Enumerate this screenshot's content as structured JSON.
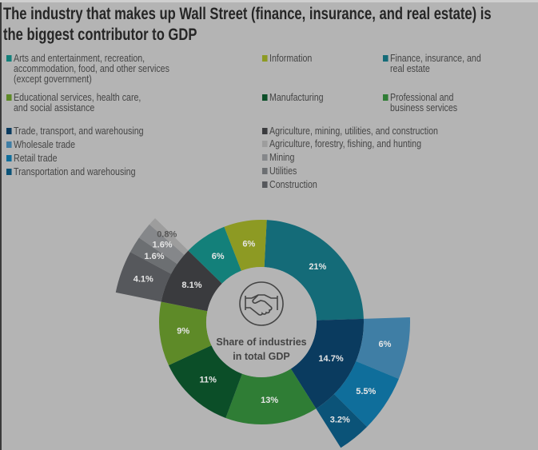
{
  "chart_data": {
    "type": "sunburst",
    "title": "The industry that makes up Wall Street (finance, insurance, and real estate) is the biggest contributor to GDP",
    "center_label": [
      "Share of industries",
      "in total GDP"
    ],
    "center_icon": "handshake-icon",
    "unit": "%",
    "segments": [
      {
        "name": "Finance, insurance, and real estate",
        "value": 21,
        "label": "21%",
        "color": "#146b78"
      },
      {
        "name": "Trade, transport, and warehousing",
        "value": 14.7,
        "label": "14.7%",
        "color": "#0a3b5f",
        "children": [
          {
            "name": "Wholesale trade",
            "value": 6,
            "label": "6%",
            "color": "#3f7ea5"
          },
          {
            "name": "Retail trade",
            "value": 5.5,
            "label": "5.5%",
            "color": "#0f6e9b"
          },
          {
            "name": "Transportation and warehousing",
            "value": 3.2,
            "label": "3.2%",
            "color": "#0b5378"
          }
        ]
      },
      {
        "name": "Professional and business services",
        "value": 13,
        "label": "13%",
        "color": "#2f7d35"
      },
      {
        "name": "Manufacturing",
        "value": 11,
        "label": "11%",
        "color": "#0b4e28"
      },
      {
        "name": "Educational services, health care, and social assistance",
        "value": 9,
        "label": "9%",
        "color": "#5e8a28"
      },
      {
        "name": "Agriculture, mining, utilities, and construction",
        "value": 8.1,
        "label": "8.1%",
        "color": "#3a3b3e",
        "children": [
          {
            "name": "Construction",
            "value": 4.1,
            "label": "4.1%",
            "color": "#56585c"
          },
          {
            "name": "Utilities",
            "value": 1.6,
            "label": "1.6%",
            "color": "#6c6f72"
          },
          {
            "name": "Mining",
            "value": 1.6,
            "label": "1.6%",
            "color": "#85878a"
          },
          {
            "name": "Agriculture, forestry, fishing, and hunting",
            "value": 0.8,
            "label": "0.8%",
            "color": "#9d9d9d"
          }
        ]
      },
      {
        "name": "Arts and entertainment, recreation, accommodation, food, and other services (except government)",
        "value": 6,
        "label": "6%",
        "color": "#13807a"
      },
      {
        "name": "Information",
        "value": 6,
        "label": "6%",
        "color": "#8d9a23"
      }
    ]
  },
  "legend": [
    {
      "lines": [
        "Arts and entertainment, recreation,",
        "accommodation, food, and other services",
        "(except government)"
      ],
      "color": "#13807a"
    },
    {
      "lines": [
        "Information"
      ],
      "color": "#8d9a23"
    },
    {
      "lines": [
        "Finance, insurance, and",
        "real estate"
      ],
      "color": "#146b78"
    },
    {
      "lines": [
        "Educational services, health care,",
        "and social assistance"
      ],
      "color": "#5e8a28"
    },
    {
      "lines": [
        "Manufacturing"
      ],
      "color": "#0b4e28"
    },
    {
      "lines": [
        "Professional and",
        "business services"
      ],
      "color": "#2f7d35"
    },
    {
      "lines": [
        "Trade, transport, and warehousing"
      ],
      "color": "#0a3b5f"
    },
    {
      "lines": [
        "Wholesale trade"
      ],
      "color": "#3f7ea5"
    },
    {
      "lines": [
        "Retail trade"
      ],
      "color": "#0f6e9b"
    },
    {
      "lines": [
        "Transportation and warehousing"
      ],
      "color": "#0b5378"
    },
    {
      "lines": [
        "Agriculture, mining, utilities, and construction"
      ],
      "color": "#3a3b3e"
    },
    {
      "lines": [
        "Agriculture, forestry, fishing, and hunting"
      ],
      "color": "#9d9d9d"
    },
    {
      "lines": [
        "Mining"
      ],
      "color": "#85878a"
    },
    {
      "lines": [
        "Utilities"
      ],
      "color": "#6c6f72"
    },
    {
      "lines": [
        "Construction"
      ],
      "color": "#56585c"
    }
  ]
}
